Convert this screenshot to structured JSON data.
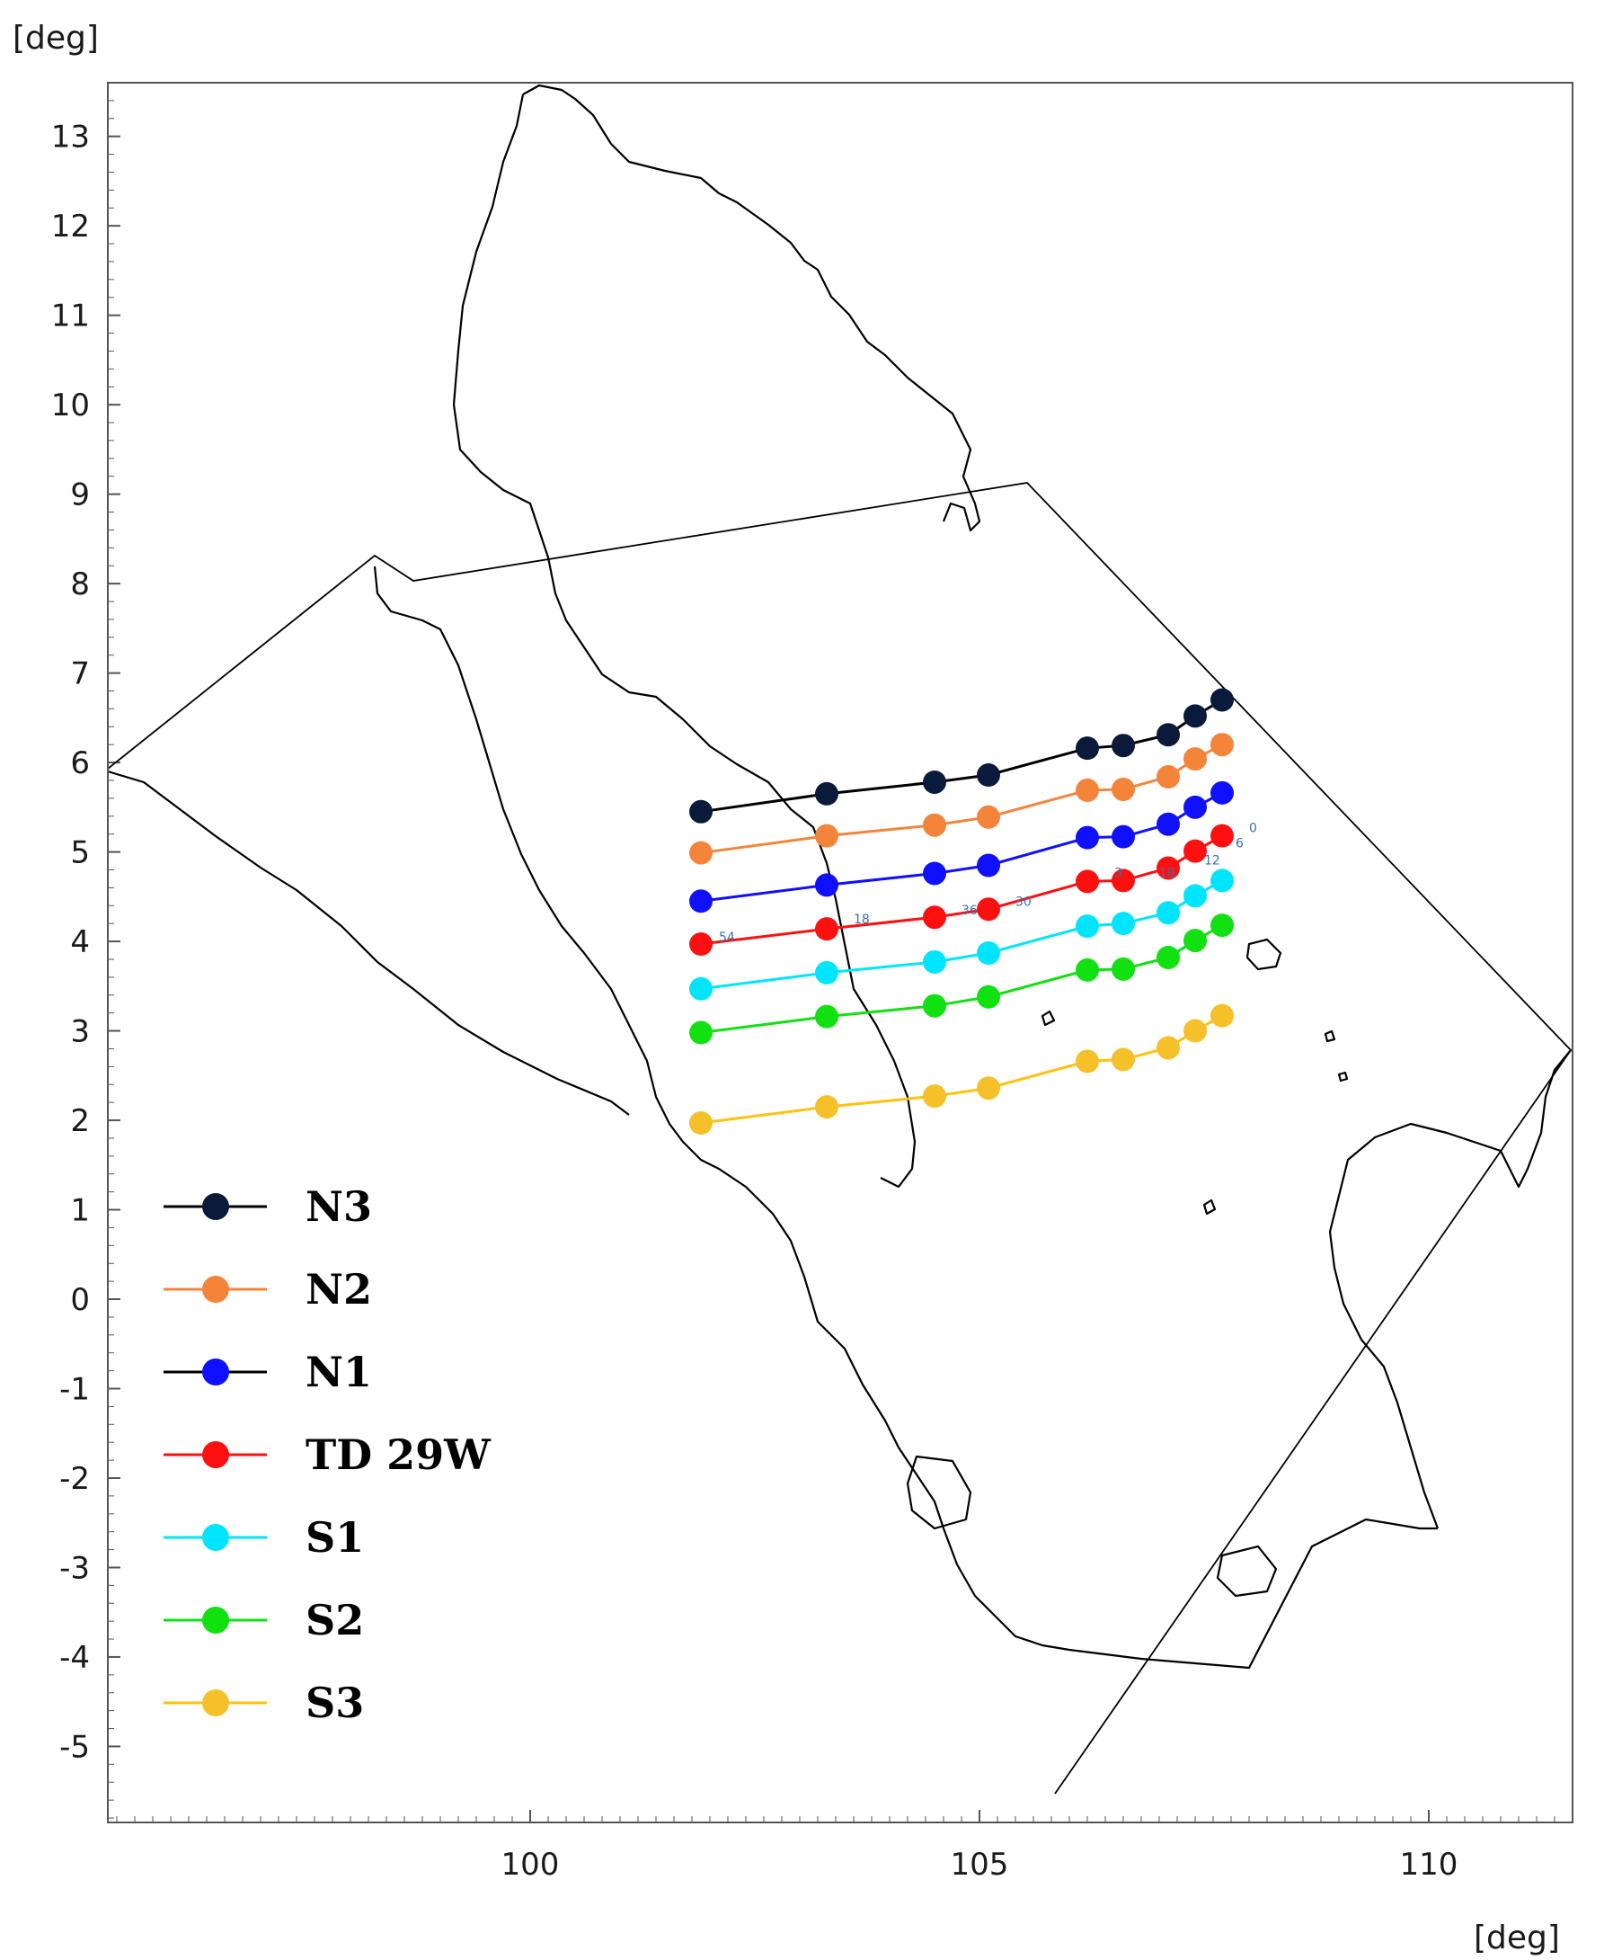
{
  "map": {
    "units": {
      "y": "[deg]",
      "x": "[deg]"
    },
    "y_ticks": [
      "13",
      "12",
      "11",
      "10",
      "9",
      "8",
      "7",
      "6",
      "5",
      "4",
      "3",
      "2",
      "1",
      "0",
      "-1",
      "-2",
      "-3",
      "-4",
      "-5"
    ],
    "x_ticks": [
      "100",
      "105",
      "110"
    ],
    "point_labels": [
      {
        "text": "54",
        "lon": 102.1,
        "lat": 4.0
      },
      {
        "text": "18",
        "lon": 103.6,
        "lat": 4.2
      },
      {
        "text": "36",
        "lon": 104.8,
        "lat": 4.3
      },
      {
        "text": "30",
        "lon": 105.4,
        "lat": 4.4
      },
      {
        "text": "3",
        "lon": 106.5,
        "lat": 4.72
      },
      {
        "text": "18",
        "lon": 107.0,
        "lat": 4.72
      },
      {
        "text": "12",
        "lon": 107.5,
        "lat": 4.86
      },
      {
        "text": "6",
        "lon": 107.85,
        "lat": 5.05
      },
      {
        "text": "0",
        "lon": 108.0,
        "lat": 5.22
      }
    ]
  },
  "chart_data": {
    "type": "line",
    "xlabel": "[deg]",
    "ylabel": "[deg]",
    "xlim": [
      95.3,
      111.6
    ],
    "ylim": [
      -5.85,
      13.6
    ],
    "x_ticks": [
      100,
      105,
      110
    ],
    "y_ticks": [
      -5,
      -4,
      -3,
      -2,
      -1,
      0,
      1,
      2,
      3,
      4,
      5,
      6,
      7,
      8,
      9,
      10,
      11,
      12,
      13
    ],
    "legend_placement": "bottom-left",
    "series": [
      {
        "name": "N3",
        "color": "#000000",
        "marker": "#0a1a3a",
        "points": [
          [
            101.9,
            5.45
          ],
          [
            103.3,
            5.65
          ],
          [
            104.5,
            5.78
          ],
          [
            105.1,
            5.86
          ],
          [
            106.2,
            6.16
          ],
          [
            106.6,
            6.19
          ],
          [
            107.1,
            6.31
          ],
          [
            107.4,
            6.52
          ],
          [
            107.7,
            6.7
          ]
        ]
      },
      {
        "name": "N2",
        "color": "#f4843a",
        "marker": "#f4843a",
        "points": [
          [
            101.9,
            4.99
          ],
          [
            103.3,
            5.18
          ],
          [
            104.5,
            5.3
          ],
          [
            105.1,
            5.39
          ],
          [
            106.2,
            5.69
          ],
          [
            106.6,
            5.7
          ],
          [
            107.1,
            5.84
          ],
          [
            107.4,
            6.04
          ],
          [
            107.7,
            6.2
          ]
        ]
      },
      {
        "name": "N1",
        "color": "#1010ff",
        "marker": "#1010ff",
        "points": [
          [
            101.9,
            4.45
          ],
          [
            103.3,
            4.63
          ],
          [
            104.5,
            4.76
          ],
          [
            105.1,
            4.85
          ],
          [
            106.2,
            5.16
          ],
          [
            106.6,
            5.17
          ],
          [
            107.1,
            5.31
          ],
          [
            107.4,
            5.5
          ],
          [
            107.7,
            5.66
          ]
        ]
      },
      {
        "name": "TD 29W",
        "color": "#ff1010",
        "marker": "#ff1010",
        "points": [
          [
            101.9,
            3.97
          ],
          [
            103.3,
            4.14
          ],
          [
            104.5,
            4.27
          ],
          [
            105.1,
            4.36
          ],
          [
            106.2,
            4.67
          ],
          [
            106.6,
            4.68
          ],
          [
            107.1,
            4.82
          ],
          [
            107.4,
            5.01
          ],
          [
            107.7,
            5.18
          ]
        ]
      },
      {
        "name": "S1",
        "color": "#00e5ff",
        "marker": "#00e5ff",
        "points": [
          [
            101.9,
            3.47
          ],
          [
            103.3,
            3.65
          ],
          [
            104.5,
            3.77
          ],
          [
            105.1,
            3.87
          ],
          [
            106.2,
            4.17
          ],
          [
            106.6,
            4.2
          ],
          [
            107.1,
            4.32
          ],
          [
            107.4,
            4.51
          ],
          [
            107.7,
            4.68
          ]
        ]
      },
      {
        "name": "S2",
        "color": "#11e011",
        "marker": "#11e011",
        "points": [
          [
            101.9,
            2.98
          ],
          [
            103.3,
            3.16
          ],
          [
            104.5,
            3.28
          ],
          [
            105.1,
            3.38
          ],
          [
            106.2,
            3.68
          ],
          [
            106.6,
            3.69
          ],
          [
            107.1,
            3.82
          ],
          [
            107.4,
            4.01
          ],
          [
            107.7,
            4.18
          ]
        ]
      },
      {
        "name": "S3",
        "color": "#ffc20e",
        "marker": "#f6c02a",
        "points": [
          [
            101.9,
            1.97
          ],
          [
            103.3,
            2.15
          ],
          [
            104.5,
            2.27
          ],
          [
            105.1,
            2.36
          ],
          [
            106.2,
            2.66
          ],
          [
            106.6,
            2.68
          ],
          [
            107.1,
            2.81
          ],
          [
            107.4,
            3.0
          ],
          [
            107.7,
            3.17
          ]
        ]
      }
    ]
  }
}
